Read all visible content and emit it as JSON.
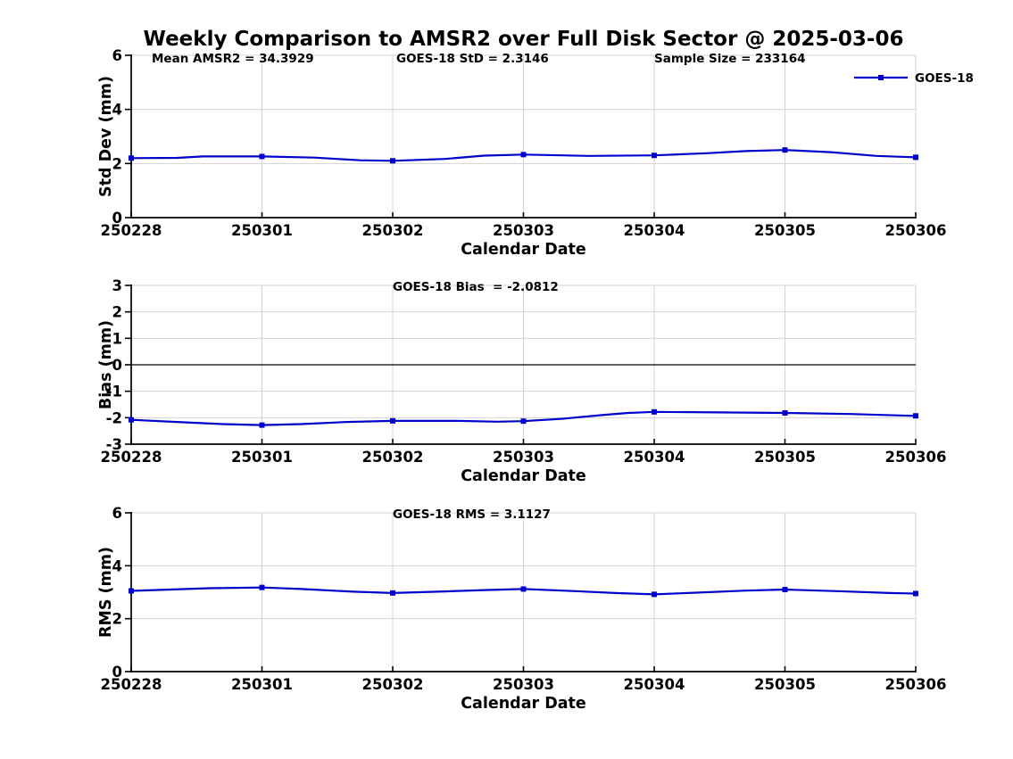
{
  "chart_data": {
    "type": "line",
    "title": "Weekly Comparison to AMSR2 over Full Disk Sector @ 2025-03-06",
    "xlabel": "Calendar Date",
    "x_categories": [
      "250228",
      "250301",
      "250302",
      "250303",
      "250304",
      "250305",
      "250306"
    ],
    "legend": {
      "label": "GOES-18",
      "position": "top-right-inside"
    },
    "grid": true,
    "subplots": [
      {
        "name": "std-dev",
        "ylabel": "Std Dev (mm)",
        "ylim": [
          0,
          6
        ],
        "yticks": [
          0,
          2,
          4,
          6
        ],
        "zero_line": false,
        "annotations": [
          "Mean AMSR2 = 34.3929",
          "GOES-18 StD = 2.3146",
          "Sample Size = 233164"
        ],
        "values": [
          2.2,
          2.26,
          2.1,
          2.33,
          2.3,
          2.5,
          2.23
        ],
        "line_points": [
          [
            0,
            2.2
          ],
          [
            0.35,
            2.21
          ],
          [
            0.55,
            2.26
          ],
          [
            1,
            2.26
          ],
          [
            1.4,
            2.22
          ],
          [
            1.75,
            2.12
          ],
          [
            2,
            2.1
          ],
          [
            2.4,
            2.17
          ],
          [
            2.7,
            2.29
          ],
          [
            3,
            2.33
          ],
          [
            3.5,
            2.28
          ],
          [
            4,
            2.3
          ],
          [
            4.4,
            2.38
          ],
          [
            4.7,
            2.46
          ],
          [
            5,
            2.5
          ],
          [
            5.35,
            2.42
          ],
          [
            5.7,
            2.28
          ],
          [
            6,
            2.23
          ]
        ]
      },
      {
        "name": "bias",
        "ylabel": "Bias (mm)",
        "ylim": [
          -3,
          3
        ],
        "yticks": [
          -3,
          -2,
          -1,
          0,
          1,
          2,
          3
        ],
        "zero_line": true,
        "annotations": [
          "GOES-18 Bias  = -2.0812"
        ],
        "values": [
          -2.08,
          -2.28,
          -2.12,
          -2.13,
          -1.78,
          -1.82,
          -1.93
        ],
        "line_points": [
          [
            0,
            -2.08
          ],
          [
            0.35,
            -2.16
          ],
          [
            0.7,
            -2.24
          ],
          [
            1,
            -2.28
          ],
          [
            1.3,
            -2.24
          ],
          [
            1.65,
            -2.16
          ],
          [
            2,
            -2.12
          ],
          [
            2.5,
            -2.12
          ],
          [
            2.8,
            -2.15
          ],
          [
            3,
            -2.13
          ],
          [
            3.3,
            -2.04
          ],
          [
            3.6,
            -1.9
          ],
          [
            3.8,
            -1.82
          ],
          [
            4,
            -1.78
          ],
          [
            4.5,
            -1.8
          ],
          [
            5,
            -1.82
          ],
          [
            5.5,
            -1.86
          ],
          [
            6,
            -1.93
          ]
        ]
      },
      {
        "name": "rms",
        "ylabel": "RMS (mm)",
        "ylim": [
          0,
          6
        ],
        "yticks": [
          0,
          2,
          4,
          6
        ],
        "zero_line": false,
        "annotations": [
          "GOES-18 RMS = 3.1127"
        ],
        "values": [
          3.05,
          3.18,
          2.97,
          3.12,
          2.92,
          3.1,
          2.95
        ],
        "line_points": [
          [
            0,
            3.05
          ],
          [
            0.3,
            3.1
          ],
          [
            0.6,
            3.15
          ],
          [
            1,
            3.18
          ],
          [
            1.3,
            3.12
          ],
          [
            1.7,
            3.02
          ],
          [
            2,
            2.97
          ],
          [
            2.4,
            3.03
          ],
          [
            2.7,
            3.08
          ],
          [
            3,
            3.12
          ],
          [
            3.4,
            3.04
          ],
          [
            3.7,
            2.97
          ],
          [
            4,
            2.92
          ],
          [
            4.3,
            2.98
          ],
          [
            4.7,
            3.06
          ],
          [
            5,
            3.1
          ],
          [
            5.4,
            3.04
          ],
          [
            5.8,
            2.97
          ],
          [
            6,
            2.95
          ]
        ]
      }
    ]
  },
  "colors": {
    "line": "#0000cc",
    "grid": "#d3d3d3",
    "axis": "#000000",
    "text": "#000000",
    "background": "#ffffff"
  }
}
